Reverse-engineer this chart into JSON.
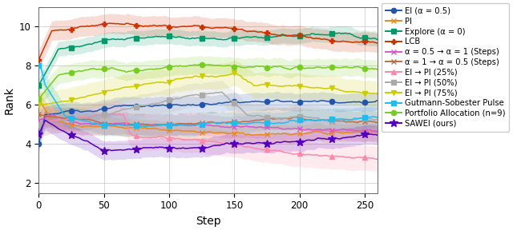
{
  "xlabel": "Step",
  "ylabel": "Rank",
  "xlim": [
    0,
    260
  ],
  "ylim": [
    1.5,
    11.0
  ],
  "yticks": [
    2,
    4,
    6,
    8,
    10
  ],
  "xticks": [
    0,
    50,
    100,
    150,
    200,
    250
  ],
  "series": [
    {
      "name": "EI (α = 0.5)",
      "color": "#2255aa",
      "marker": "o",
      "waypoints": [
        [
          0,
          4.0
        ],
        [
          5,
          5.5
        ],
        [
          50,
          5.8
        ],
        [
          260,
          6.2
        ]
      ],
      "std": 0.45,
      "marker_every": 25
    },
    {
      "name": "PI",
      "color": "#e88820",
      "marker": "x",
      "waypoints": [
        [
          0,
          6.3
        ],
        [
          10,
          5.2
        ],
        [
          50,
          5.0
        ],
        [
          260,
          4.9
        ]
      ],
      "std": 0.45,
      "marker_every": 25
    },
    {
      "name": "Explore (α = 0)",
      "color": "#00996a",
      "marker": "s",
      "waypoints": [
        [
          0,
          7.0
        ],
        [
          15,
          8.8
        ],
        [
          50,
          9.2
        ],
        [
          260,
          9.2
        ]
      ],
      "std": 0.38,
      "marker_every": 25
    },
    {
      "name": "LCB",
      "color": "#cc3300",
      "marker": "P",
      "waypoints": [
        [
          0,
          8.3
        ],
        [
          10,
          9.8
        ],
        [
          50,
          10.3
        ],
        [
          130,
          10.2
        ],
        [
          260,
          9.7
        ]
      ],
      "std": 0.5,
      "marker_every": 25
    },
    {
      "name": "α = 0.5 → α = 1 (Steps)",
      "color": "#dd55cc",
      "marker": "x",
      "waypoints": [
        [
          0,
          5.2
        ],
        [
          10,
          5.5
        ],
        [
          30,
          5.0
        ],
        [
          260,
          4.5
        ]
      ],
      "std": 0.55,
      "marker_every": 25
    },
    {
      "name": "α = 1 → α = 0.5 (Steps)",
      "color": "#b87040",
      "marker": "x",
      "waypoints": [
        [
          0,
          5.5
        ],
        [
          20,
          5.3
        ],
        [
          50,
          5.0
        ],
        [
          260,
          4.8
        ]
      ],
      "std": 0.55,
      "marker_every": 25
    },
    {
      "name": "EI → PI (25%)",
      "color": "#ff88aa",
      "marker": "^",
      "waypoints": [
        [
          0,
          5.0
        ],
        [
          10,
          5.2
        ],
        [
          65,
          5.5
        ],
        [
          70,
          4.5
        ],
        [
          260,
          3.7
        ]
      ],
      "std": 0.65,
      "marker_every": 25
    },
    {
      "name": "EI → PI (50%)",
      "color": "#aaaaaa",
      "marker": "s",
      "waypoints": [
        [
          0,
          5.0
        ],
        [
          50,
          5.5
        ],
        [
          140,
          6.5
        ],
        [
          160,
          5.2
        ],
        [
          260,
          4.9
        ]
      ],
      "std": 0.6,
      "marker_every": 25
    },
    {
      "name": "EI → PI (75%)",
      "color": "#cccc00",
      "marker": "v",
      "waypoints": [
        [
          0,
          6.0
        ],
        [
          30,
          6.2
        ],
        [
          150,
          7.5
        ],
        [
          165,
          6.8
        ],
        [
          260,
          6.2
        ]
      ],
      "std": 0.65,
      "marker_every": 25
    },
    {
      "name": "Gutmann-Sobester Pulse",
      "color": "#22bbee",
      "marker": "s",
      "waypoints": [
        [
          0,
          8.0
        ],
        [
          1,
          8.1
        ],
        [
          5,
          7.0
        ],
        [
          20,
          5.5
        ],
        [
          50,
          5.0
        ],
        [
          260,
          5.3
        ]
      ],
      "std": 0.55,
      "marker_every": 25
    },
    {
      "name": "Portfolio Allocation (n=9)",
      "color": "#77cc22",
      "marker": "o",
      "waypoints": [
        [
          0,
          6.3
        ],
        [
          15,
          7.5
        ],
        [
          50,
          8.0
        ],
        [
          260,
          8.0
        ]
      ],
      "std": 0.45,
      "marker_every": 25
    },
    {
      "name": "SAWEI (ours)",
      "color": "#5500bb",
      "marker": "*",
      "waypoints": [
        [
          0,
          4.5
        ],
        [
          5,
          5.2
        ],
        [
          15,
          4.8
        ],
        [
          50,
          3.8
        ],
        [
          260,
          4.3
        ]
      ],
      "std": 0.48,
      "marker_every": 25
    }
  ]
}
